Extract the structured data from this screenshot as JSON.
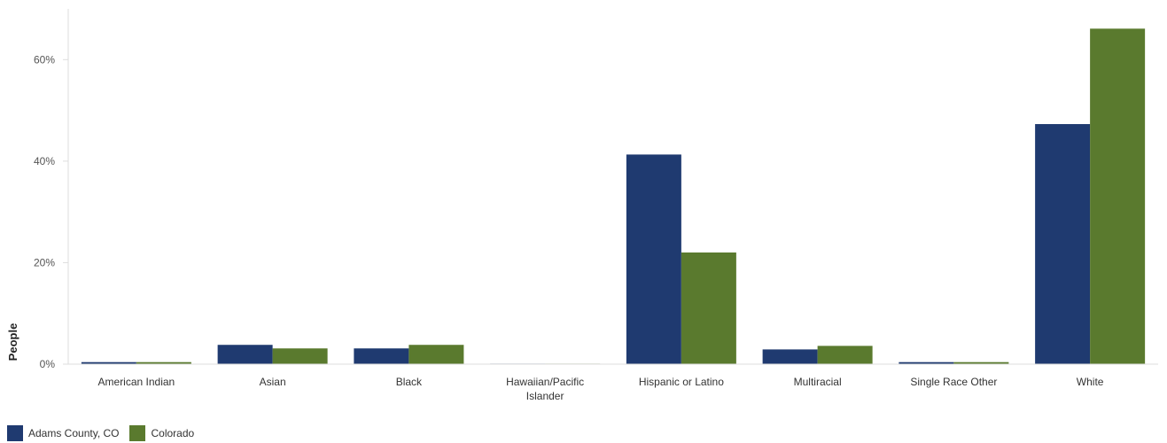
{
  "chart_data": {
    "type": "bar",
    "title": "",
    "xlabel": "",
    "ylabel": "People",
    "ylim": [
      0,
      0.7
    ],
    "yticks": [
      0,
      0.2,
      0.4,
      0.6
    ],
    "ytick_labels": [
      "0%",
      "20%",
      "40%",
      "60%"
    ],
    "grid": false,
    "legend_position": "bottom-left",
    "categories": [
      "American Indian",
      "Asian",
      "Black",
      "Hawaiian/Pacific Islander",
      "Hispanic or Latino",
      "Multiracial",
      "Single Race Other",
      "White"
    ],
    "series": [
      {
        "name": "Adams County, CO",
        "color": "#1f3a70",
        "values": [
          0.004,
          0.038,
          0.031,
          0.001,
          0.413,
          0.029,
          0.004,
          0.473
        ]
      },
      {
        "name": "Colorado",
        "color": "#5a7a2e",
        "values": [
          0.004,
          0.031,
          0.038,
          0.001,
          0.22,
          0.036,
          0.004,
          0.661
        ]
      }
    ]
  }
}
